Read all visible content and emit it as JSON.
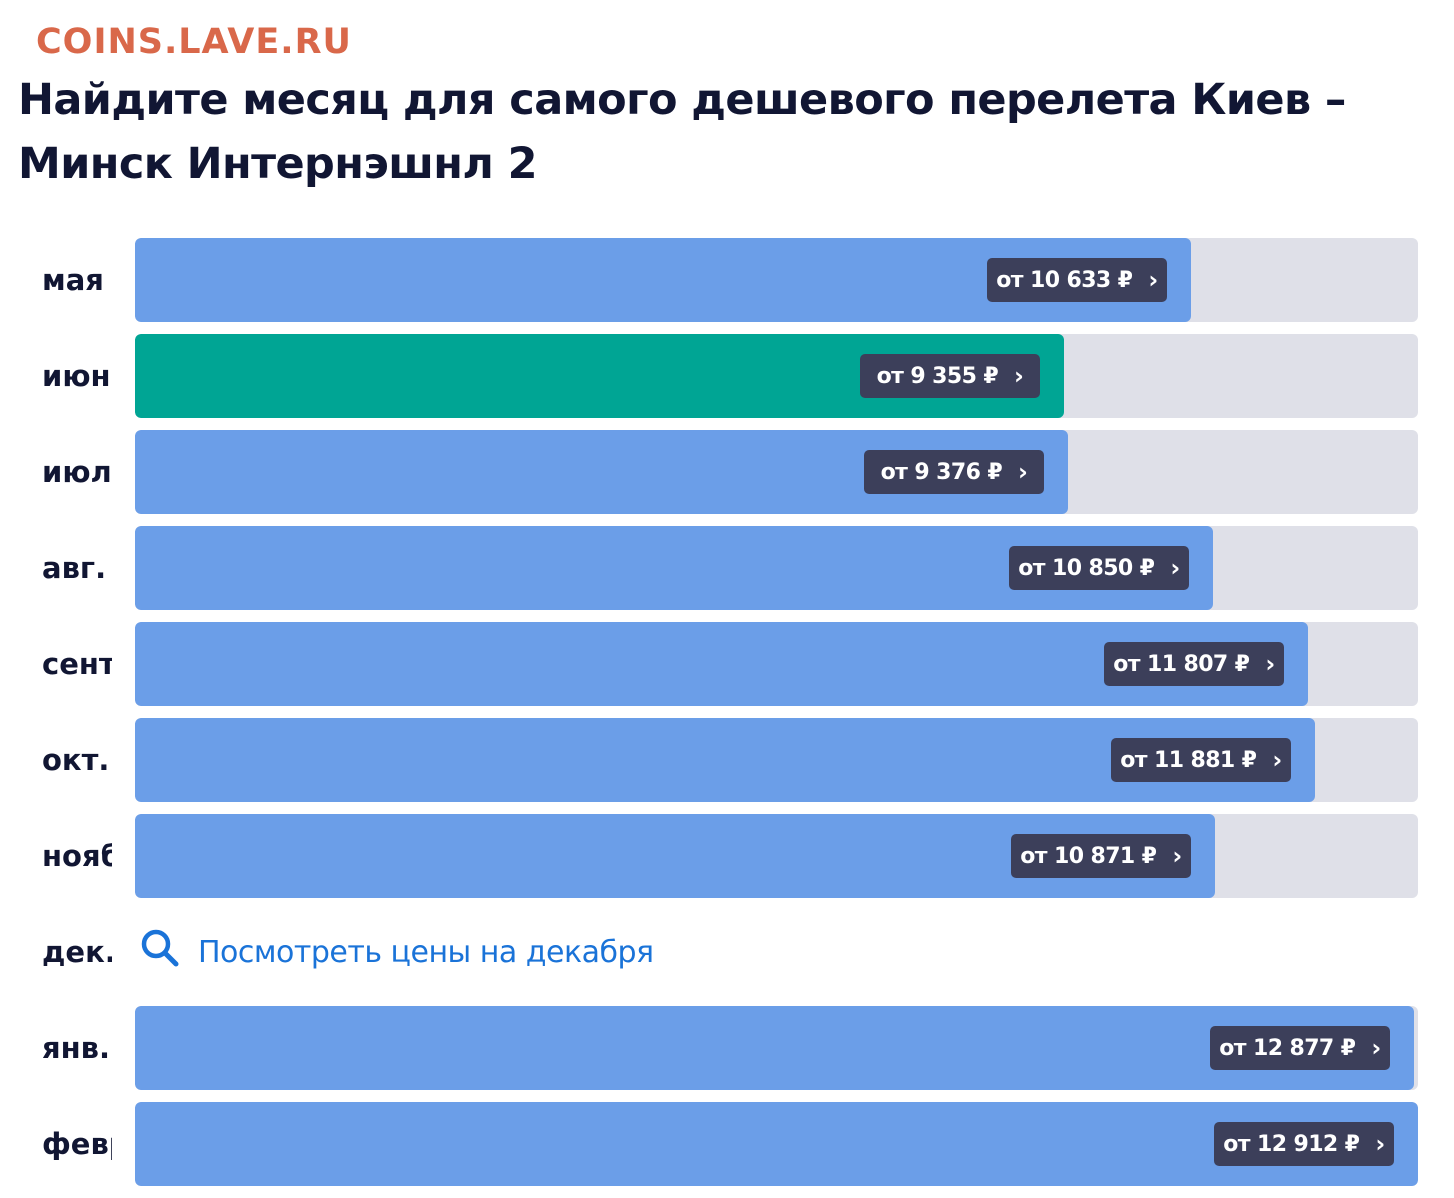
{
  "watermark": "COINS.LAVE.RU",
  "title": "Найдите месяц для самого дешевого перелета Киев – Минск Интернэшнл 2",
  "colors": {
    "bar": "#6b9ee8",
    "bar_cheapest": "#00a594",
    "track": "#dfe0e8",
    "price_badge": "#3c3f5a",
    "link": "#1a73d8"
  },
  "months": [
    {
      "label": "мая",
      "price_text": "от 10 633 ₽",
      "price": 10633,
      "fill": 0.823,
      "cheapest": false
    },
    {
      "label": "июн.",
      "price_text": "от 9 355 ₽",
      "price": 9355,
      "fill": 0.724,
      "cheapest": true
    },
    {
      "label": "июл.",
      "price_text": "от 9 376 ₽",
      "price": 9376,
      "fill": 0.727,
      "cheapest": false
    },
    {
      "label": "авг.",
      "price_text": "от 10 850 ₽",
      "price": 10850,
      "fill": 0.84,
      "cheapest": false
    },
    {
      "label": "сентября",
      "price_text": "от 11 807 ₽",
      "price": 11807,
      "fill": 0.914,
      "cheapest": false
    },
    {
      "label": "окт.",
      "price_text": "от 11 881 ₽",
      "price": 11881,
      "fill": 0.92,
      "cheapest": false
    },
    {
      "label": "ноября",
      "price_text": "от 10 871 ₽",
      "price": 10871,
      "fill": 0.842,
      "cheapest": false
    },
    {
      "label": "дек.",
      "no_data": true,
      "link_text": "Посмотреть цены на декабря",
      "icon": "search-icon"
    },
    {
      "label": "янв.",
      "price_text": "от 12 877 ₽",
      "price": 12877,
      "fill": 0.997,
      "cheapest": false
    },
    {
      "label": "февраля",
      "price_text": "от 12 912 ₽",
      "price": 12912,
      "fill": 1.0,
      "cheapest": false
    }
  ]
}
